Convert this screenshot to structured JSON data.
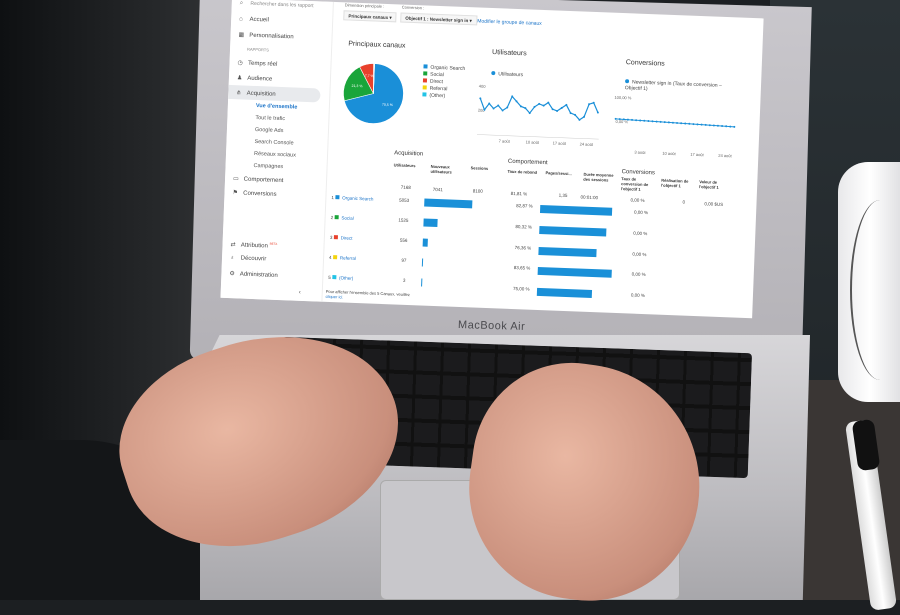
{
  "device": {
    "brand": "MacBook Air"
  },
  "sidebar": {
    "search_placeholder": "Rechercher dans les rapport",
    "home": "Accueil",
    "customization": "Personnalisation",
    "reports_heading": "RAPPORTS",
    "items": [
      {
        "label": "Temps réel",
        "icon": "clock-icon"
      },
      {
        "label": "Audience",
        "icon": "person-icon"
      },
      {
        "label": "Acquisition",
        "icon": "acquisition-icon",
        "active": true
      },
      {
        "label": "Comportement",
        "icon": "behavior-icon"
      },
      {
        "label": "Conversions",
        "icon": "flag-icon"
      }
    ],
    "acquisition_sub": [
      "Vue d'ensemble",
      "Tout le trafic",
      "Google Ads",
      "Search Console",
      "Réseaux sociaux",
      "Campagnes"
    ],
    "attribution": "Attribution",
    "beta": "BETA",
    "discover": "Découvrir",
    "admin": "Administration"
  },
  "toolbar": {
    "dimension_label": "Dimension principale :",
    "dimension_value": "Principaux canaux",
    "conversion_label": "Conversion :",
    "conversion_value": "Objectif 1 : Newsletter sign in",
    "edit_link": "Modifier le groupe de canaux"
  },
  "channels_card": {
    "title": "Principaux canaux",
    "slices": [
      {
        "label": "Organic Search",
        "value": 70.5,
        "text": "70,5 %",
        "color": "#1a8fd8"
      },
      {
        "label": "Social",
        "value": 21.3,
        "text": "21,3 %",
        "color": "#1aa53a"
      },
      {
        "label": "Direct",
        "value": 7.7,
        "text": "7,7 %",
        "color": "#e8412c"
      },
      {
        "label": "Referral",
        "value": 0.4,
        "color": "#f4d40c"
      },
      {
        "label": "(Other)",
        "value": 0.1,
        "color": "#22c3e6"
      }
    ]
  },
  "users_card": {
    "title": "Utilisateurs",
    "legend": "Utilisateurs",
    "y_ticks": [
      "400",
      "200"
    ],
    "x_ticks": [
      "7 août",
      "10 août",
      "17 août",
      "24 août"
    ],
    "values": [
      320,
      250,
      290,
      260,
      280,
      250,
      270,
      340,
      310,
      280,
      270,
      240,
      280,
      300,
      290,
      310,
      270,
      260,
      280,
      300,
      250,
      240,
      210,
      230,
      310,
      320,
      260
    ]
  },
  "conversions_card": {
    "title": "Conversions",
    "legend": "Newsletter sign in (Taux de conversion – Objectif 1)",
    "y_ticks": [
      "100,00 %",
      "0,00 %"
    ],
    "x_ticks": [
      "3 août",
      "10 août",
      "17 août",
      "24 août"
    ]
  },
  "table": {
    "groups": [
      "Acquisition",
      "Comportement",
      "Conversions"
    ],
    "headers": [
      "Utilisateurs",
      "Nouveaux utilisateurs",
      "Sessions",
      "Taux de rebond",
      "Pages/sessi...",
      "Durée moyenne des sessions",
      "Taux de conversion de l'objectif 1",
      "Réalisation de l'objectif 1",
      "Valeur de l'objectif 1"
    ],
    "totals": {
      "users": "7168",
      "new_users": "7041",
      "sessions": "8100",
      "bounce": "81,81 %",
      "pages": "1,35",
      "duration": "00:01:00",
      "conv_rate": "0,00 %",
      "completions": "0",
      "value": "0,00 $US"
    },
    "rows": [
      {
        "rank": "1",
        "channel": "Organic Search",
        "color": "#1a8fd8",
        "users": "5053",
        "users_n": 5053,
        "bounce": "82,87 %",
        "bounce_n": 82.87,
        "conv": "0,00 %"
      },
      {
        "rank": "2",
        "channel": "Social",
        "color": "#1aa53a",
        "users": "1525",
        "users_n": 1525,
        "bounce": "80,32 %",
        "bounce_n": 80.32,
        "conv": "0,00 %"
      },
      {
        "rank": "3",
        "channel": "Direct",
        "color": "#e8412c",
        "users": "556",
        "users_n": 556,
        "bounce": "76,36 %",
        "bounce_n": 76.36,
        "conv": "0,00 %"
      },
      {
        "rank": "4",
        "channel": "Referral",
        "color": "#f4d40c",
        "users": "97",
        "users_n": 97,
        "bounce": "83,65 %",
        "bounce_n": 83.65,
        "conv": "0,00 %"
      },
      {
        "rank": "5",
        "channel": "(Other)",
        "color": "#22c3e6",
        "users": "3",
        "users_n": 3,
        "bounce": "75,00 %",
        "bounce_n": 75,
        "conv": "0,00 %"
      }
    ],
    "footer": "Pour afficher l'ensemble des 5 Canaux, veuillez",
    "footer_link": "cliquer ici."
  }
}
